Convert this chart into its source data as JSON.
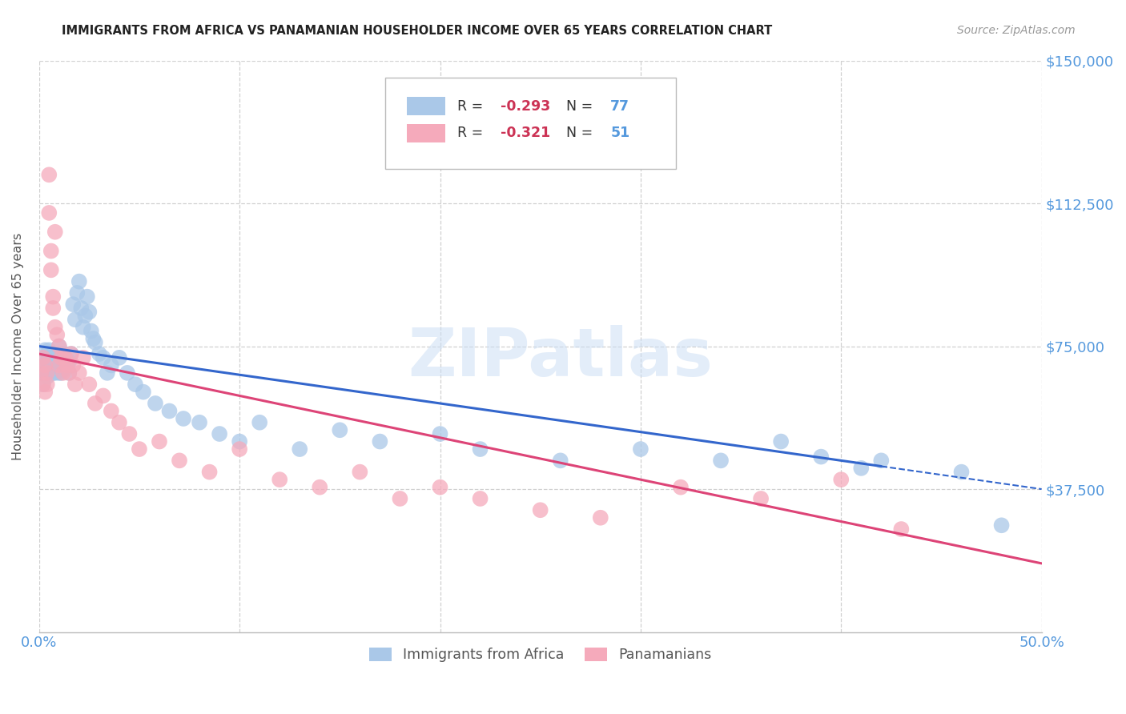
{
  "title": "IMMIGRANTS FROM AFRICA VS PANAMANIAN HOUSEHOLDER INCOME OVER 65 YEARS CORRELATION CHART",
  "source": "Source: ZipAtlas.com",
  "ylabel": "Householder Income Over 65 years",
  "xlim": [
    0.0,
    0.5
  ],
  "ylim": [
    0,
    150000
  ],
  "yticks": [
    0,
    37500,
    75000,
    112500,
    150000
  ],
  "ytick_labels": [
    "",
    "$37,500",
    "$75,000",
    "$112,500",
    "$150,000"
  ],
  "xticks": [
    0.0,
    0.1,
    0.2,
    0.3,
    0.4,
    0.5
  ],
  "background_color": "#ffffff",
  "grid_color": "#d0d0d0",
  "title_color": "#222222",
  "axis_color": "#5599dd",
  "legend_R_color": "#cc3355",
  "watermark": "ZIPatlas",
  "series": [
    {
      "name": "Immigrants from Africa",
      "color": "#aac8e8",
      "R": -0.293,
      "N": 77,
      "line_color": "#3366cc",
      "line_intercept": 75000,
      "line_slope": -75000,
      "line_x_data_max": 0.42,
      "x": [
        0.001,
        0.002,
        0.002,
        0.003,
        0.003,
        0.003,
        0.004,
        0.004,
        0.004,
        0.005,
        0.005,
        0.005,
        0.006,
        0.006,
        0.006,
        0.007,
        0.007,
        0.007,
        0.008,
        0.008,
        0.008,
        0.009,
        0.009,
        0.01,
        0.01,
        0.01,
        0.011,
        0.011,
        0.012,
        0.012,
        0.013,
        0.013,
        0.014,
        0.015,
        0.015,
        0.016,
        0.017,
        0.018,
        0.019,
        0.02,
        0.021,
        0.022,
        0.023,
        0.024,
        0.025,
        0.026,
        0.027,
        0.028,
        0.03,
        0.032,
        0.034,
        0.036,
        0.04,
        0.044,
        0.048,
        0.052,
        0.058,
        0.065,
        0.072,
        0.08,
        0.09,
        0.1,
        0.11,
        0.13,
        0.15,
        0.17,
        0.2,
        0.22,
        0.26,
        0.3,
        0.34,
        0.37,
        0.39,
        0.41,
        0.42,
        0.46,
        0.48
      ],
      "y": [
        68000,
        72000,
        65000,
        70000,
        74000,
        68000,
        71000,
        69000,
        67000,
        72000,
        68000,
        74000,
        70000,
        69000,
        71000,
        68000,
        73000,
        72000,
        70000,
        68000,
        72000,
        69000,
        71000,
        68000,
        75000,
        70000,
        72000,
        68000,
        73000,
        71000,
        69000,
        72000,
        70000,
        68000,
        71000,
        73000,
        86000,
        82000,
        89000,
        92000,
        85000,
        80000,
        83000,
        88000,
        84000,
        79000,
        77000,
        76000,
        73000,
        72000,
        68000,
        70000,
        72000,
        68000,
        65000,
        63000,
        60000,
        58000,
        56000,
        55000,
        52000,
        50000,
        55000,
        48000,
        53000,
        50000,
        52000,
        48000,
        45000,
        48000,
        45000,
        50000,
        46000,
        43000,
        45000,
        42000,
        28000
      ]
    },
    {
      "name": "Panamanians",
      "color": "#f5aabb",
      "R": -0.321,
      "N": 51,
      "line_color": "#dd4477",
      "line_intercept": 73000,
      "line_slope": -110000,
      "line_x_data_max": 0.5,
      "x": [
        0.001,
        0.002,
        0.002,
        0.003,
        0.003,
        0.004,
        0.004,
        0.005,
        0.005,
        0.006,
        0.006,
        0.007,
        0.007,
        0.008,
        0.008,
        0.009,
        0.01,
        0.01,
        0.011,
        0.012,
        0.013,
        0.014,
        0.015,
        0.016,
        0.017,
        0.018,
        0.02,
        0.022,
        0.025,
        0.028,
        0.032,
        0.036,
        0.04,
        0.045,
        0.05,
        0.06,
        0.07,
        0.085,
        0.1,
        0.12,
        0.14,
        0.16,
        0.18,
        0.2,
        0.22,
        0.25,
        0.28,
        0.32,
        0.36,
        0.4,
        0.43
      ],
      "y": [
        68000,
        72000,
        65000,
        70000,
        63000,
        68000,
        65000,
        110000,
        120000,
        100000,
        95000,
        88000,
        85000,
        105000,
        80000,
        78000,
        75000,
        70000,
        72000,
        68000,
        72000,
        70000,
        68000,
        73000,
        70000,
        65000,
        68000,
        72000,
        65000,
        60000,
        62000,
        58000,
        55000,
        52000,
        48000,
        50000,
        45000,
        42000,
        48000,
        40000,
        38000,
        42000,
        35000,
        38000,
        35000,
        32000,
        30000,
        38000,
        35000,
        40000,
        27000
      ]
    }
  ]
}
